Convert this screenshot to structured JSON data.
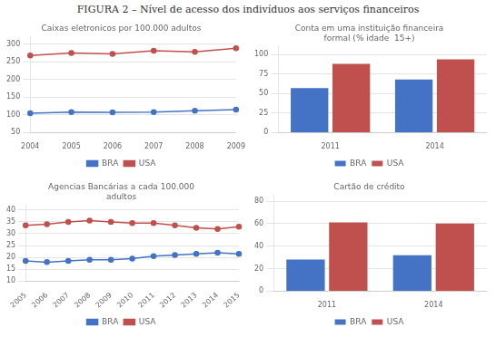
{
  "title": "FIGURA 2 – Nível de acesso dos indivíduos aos serviços financeiros",
  "chart_data": [
    {
      "type": "line",
      "title": "Caixas eletronicos por 100.000 adultos",
      "categories": [
        "2004",
        "2005",
        "2006",
        "2007",
        "2008",
        "2009"
      ],
      "series": [
        {
          "name": "BRA",
          "color": "#4472C4",
          "values": [
            105,
            108,
            107,
            108,
            112,
            115
          ]
        },
        {
          "name": "USA",
          "color": "#C0504D",
          "values": [
            268,
            275,
            272,
            281,
            278,
            288
          ]
        }
      ],
      "marker": "circle",
      "ylim": [
        50,
        320
      ],
      "yticks": [
        50,
        100,
        150,
        200,
        250,
        300
      ],
      "grid": true,
      "legend": "bottom"
    },
    {
      "type": "bar",
      "title": "Conta em uma instituição financeira\nformal (% idade  15+)",
      "categories": [
        "2011",
        "2014"
      ],
      "series": [
        {
          "name": "BRA",
          "color": "#4472C4",
          "values": [
            57,
            68
          ]
        },
        {
          "name": "USA",
          "color": "#C0504D",
          "values": [
            88,
            94
          ]
        }
      ],
      "ylim": [
        0,
        110
      ],
      "yticks": [
        0,
        25,
        50,
        75,
        100
      ],
      "grid": true,
      "legend": "bottom"
    },
    {
      "type": "line",
      "title": "Agencias Bancárias a cada 100.000\nadultos",
      "categories": [
        "2005",
        "2006",
        "2007",
        "2008",
        "2009",
        "2010",
        "2011",
        "2012",
        "2013",
        "2014",
        "2015"
      ],
      "series": [
        {
          "name": "BRA",
          "color": "#4472C4",
          "values": [
            18.5,
            18.0,
            18.5,
            19.0,
            19.0,
            19.5,
            20.5,
            21.0,
            21.5,
            22.0,
            21.5
          ]
        },
        {
          "name": "USA",
          "color": "#C0504D",
          "values": [
            33.5,
            34.0,
            35.0,
            35.5,
            35.0,
            34.5,
            34.5,
            33.5,
            32.5,
            32.0,
            33.0
          ]
        }
      ],
      "marker": "circle",
      "ylim": [
        10,
        42
      ],
      "yticks": [
        10,
        15,
        20,
        25,
        30,
        35,
        40
      ],
      "grid": true,
      "legend": "bottom"
    },
    {
      "type": "bar",
      "title": "Cartão de crédito",
      "categories": [
        "2011",
        "2014"
      ],
      "series": [
        {
          "name": "BRA",
          "color": "#4472C4",
          "values": [
            28,
            32
          ]
        },
        {
          "name": "USA",
          "color": "#C0504D",
          "values": [
            61,
            60
          ]
        }
      ],
      "ylim": [
        0,
        85
      ],
      "yticks": [
        0,
        20,
        40,
        60,
        80
      ],
      "grid": true,
      "legend": "bottom"
    }
  ]
}
